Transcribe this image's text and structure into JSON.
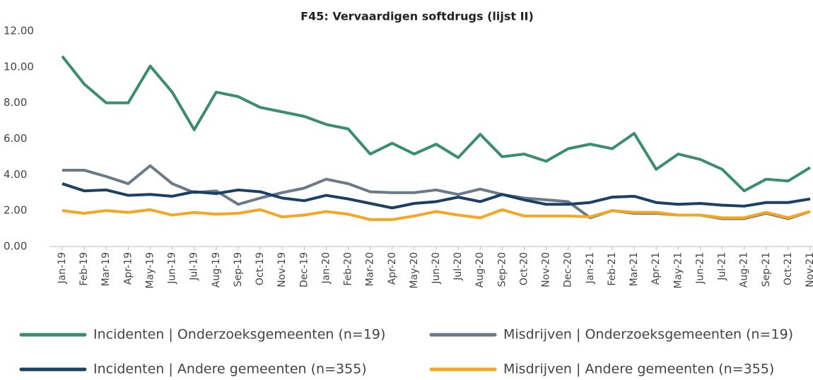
{
  "chart_data": {
    "type": "line",
    "title": "F45: Vervaardigen softdrugs (lijst II)",
    "categories": [
      "Jan-19",
      "Feb-19",
      "Mar-19",
      "Apr-19",
      "May-19",
      "Jun-19",
      "Jul-19",
      "Aug-19",
      "Sep-19",
      "Oct-19",
      "Nov-19",
      "Dec-19",
      "Jan-20",
      "Feb-20",
      "Mar-20",
      "Apr-20",
      "May-20",
      "Jun-20",
      "Jul-20",
      "Aug-20",
      "Sep-20",
      "Oct-20",
      "Nov-20",
      "Dec-20",
      "Jan-21",
      "Feb-21",
      "Mar-21",
      "Apr-21",
      "May-21",
      "Jun-21",
      "Jul-21",
      "Aug-21",
      "Sep-21",
      "Oct-21",
      "Nov-21"
    ],
    "series": [
      {
        "name": "Incidenten | Onderzoeksgemeenten (n=19)",
        "color": "#3a8d6e",
        "values": [
          10.6,
          9.05,
          8.0,
          8.0,
          10.05,
          8.6,
          6.5,
          8.6,
          8.35,
          7.75,
          7.5,
          7.25,
          6.8,
          6.55,
          5.15,
          5.75,
          5.15,
          5.7,
          4.95,
          6.25,
          5.0,
          5.15,
          4.75,
          5.45,
          5.7,
          5.45,
          6.3,
          4.3,
          5.15,
          4.85,
          4.3,
          3.1,
          3.75,
          3.65,
          4.4
        ]
      },
      {
        "name": "Misdrijven | Onderzoeksgemeenten (n=19)",
        "color": "#6b7a87",
        "values": [
          4.25,
          4.25,
          3.9,
          3.5,
          4.5,
          3.5,
          3.0,
          3.1,
          2.35,
          2.7,
          3.0,
          3.25,
          3.75,
          3.5,
          3.05,
          3.0,
          3.0,
          3.15,
          2.9,
          3.2,
          2.9,
          2.7,
          2.6,
          2.5,
          1.6,
          2.0,
          1.85,
          1.85,
          1.75,
          1.75,
          1.55,
          1.55,
          1.85,
          1.55,
          1.95
        ]
      },
      {
        "name": "Incidenten | Andere gemeenten (n=355)",
        "color": "#1c3f66",
        "values": [
          3.5,
          3.1,
          3.15,
          2.85,
          2.9,
          2.8,
          3.05,
          2.95,
          3.15,
          3.05,
          2.7,
          2.55,
          2.85,
          2.65,
          2.4,
          2.15,
          2.4,
          2.5,
          2.75,
          2.5,
          2.9,
          2.6,
          2.35,
          2.35,
          2.45,
          2.75,
          2.8,
          2.45,
          2.35,
          2.4,
          2.3,
          2.25,
          2.45,
          2.45,
          2.65
        ]
      },
      {
        "name": "Misdrijven | Andere gemeenten (n=355)",
        "color": "#f5a623",
        "values": [
          2.0,
          1.85,
          2.0,
          1.9,
          2.05,
          1.75,
          1.9,
          1.8,
          1.85,
          2.05,
          1.65,
          1.75,
          1.95,
          1.8,
          1.5,
          1.5,
          1.7,
          1.95,
          1.75,
          1.6,
          2.05,
          1.7,
          1.7,
          1.7,
          1.65,
          2.0,
          1.9,
          1.9,
          1.75,
          1.75,
          1.6,
          1.6,
          1.9,
          1.6,
          1.95
        ]
      }
    ],
    "ylim": [
      0,
      12
    ],
    "yticks": [
      {
        "value": 0,
        "label": "0.00"
      },
      {
        "value": 2,
        "label": "2.00"
      },
      {
        "value": 4,
        "label": "4.00"
      },
      {
        "value": 6,
        "label": "6.00"
      },
      {
        "value": 8,
        "label": "8.00"
      },
      {
        "value": 10,
        "label": "10.00"
      },
      {
        "value": 12,
        "label": "12.00"
      }
    ],
    "grid": false
  }
}
